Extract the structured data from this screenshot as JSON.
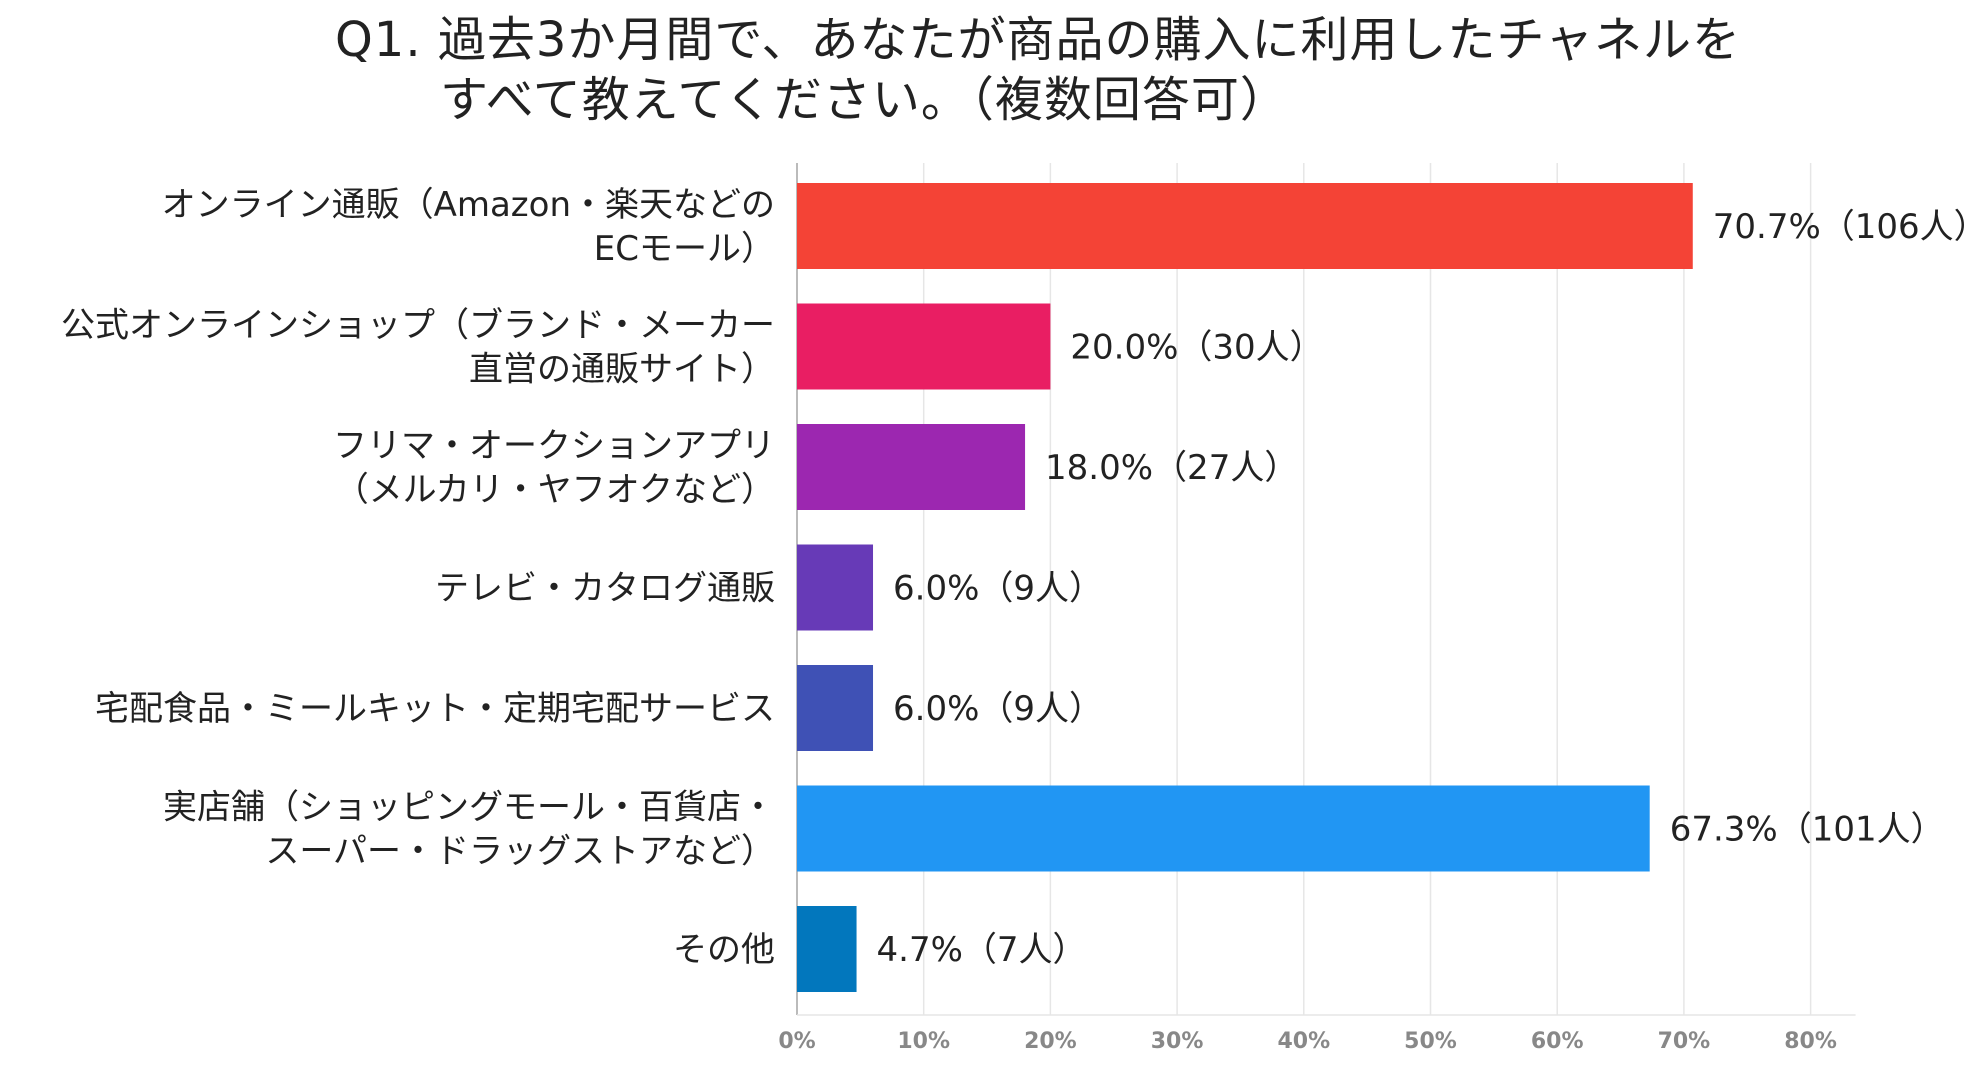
{
  "chart_data": {
    "type": "bar",
    "orientation": "horizontal",
    "title": "Q1. 過去3か月間で、あなたが商品の購入に利用したチャネルを",
    "subtitle": "すべて教えてください。（複数回答可）",
    "categories": [
      [
        "オンライン通販（Amazon・楽天などの",
        "ECモール）"
      ],
      [
        "公式オンラインショップ（ブランド・メーカー",
        "直営の通販サイト）"
      ],
      [
        "フリマ・オークションアプリ",
        "（メルカリ・ヤフオクなど）"
      ],
      [
        "テレビ・カタログ通販"
      ],
      [
        "宅配食品・ミールキット・定期宅配サービス"
      ],
      [
        "実店舗（ショッピングモール・百貨店・",
        "スーパー・ドラッグストアなど）"
      ],
      [
        "その他"
      ]
    ],
    "values": [
      70.7,
      20.0,
      18.0,
      6.0,
      6.0,
      67.3,
      4.7
    ],
    "data_labels": [
      "70.7%（106人）",
      "20.0%（30人）",
      "18.0%（27人）",
      "6.0%（9人）",
      "6.0%（9人）",
      "67.3%（101人）",
      "4.7%（7人）"
    ],
    "colors": [
      "#f44336",
      "#e91e63",
      "#9c27b0",
      "#673ab7",
      "#3f51b5",
      "#2196f3",
      "#0277bd"
    ],
    "xlim": [
      0,
      80
    ],
    "xticks": [
      "0%",
      "10%",
      "20%",
      "30%",
      "40%",
      "50%",
      "60%",
      "70%",
      "80%"
    ],
    "grid": true,
    "legend": "none"
  }
}
